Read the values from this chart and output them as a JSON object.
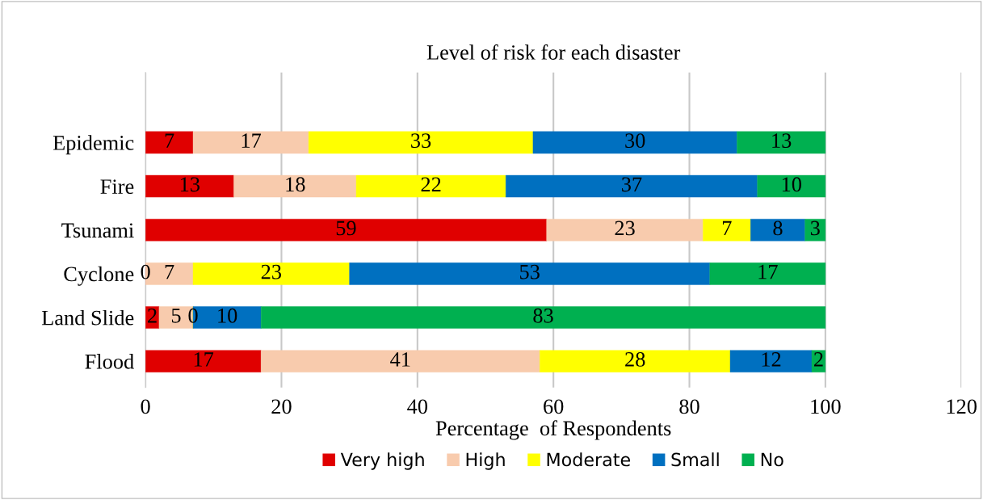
{
  "chart_data": {
    "type": "bar",
    "orientation": "horizontal",
    "stacked": true,
    "title": "Level of risk for each disaster",
    "xlabel": "Percentage  of Respondents",
    "categories": [
      "Epidemic",
      "Fire",
      "Tsunami",
      "Cyclone",
      "Land Slide",
      "Flood"
    ],
    "series": [
      {
        "name": "Very high",
        "color": "#e00000",
        "values": [
          7,
          13,
          59,
          0,
          2,
          17
        ]
      },
      {
        "name": "High",
        "color": "#f8cbad",
        "values": [
          17,
          18,
          23,
          7,
          5,
          41
        ]
      },
      {
        "name": "Moderate",
        "color": "#ffff00",
        "values": [
          33,
          22,
          7,
          23,
          0,
          28
        ]
      },
      {
        "name": "Small",
        "color": "#0070c0",
        "values": [
          30,
          37,
          8,
          53,
          10,
          12
        ]
      },
      {
        "name": "No",
        "color": "#00b050",
        "values": [
          13,
          10,
          3,
          17,
          83,
          2
        ]
      }
    ],
    "xlim": [
      0,
      120
    ],
    "xticks": [
      0,
      20,
      40,
      60,
      80,
      100,
      120
    ],
    "grid": "x",
    "legend": "bottom",
    "data_labels": true
  }
}
